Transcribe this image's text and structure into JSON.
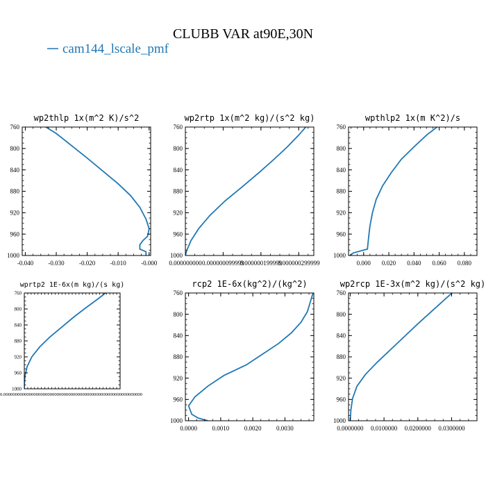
{
  "figure": {
    "title": "CLUBB VAR at90E,30N",
    "legend": "cam144_lscale_pmf",
    "line_color": "#1f77b4"
  },
  "chart_data": [
    {
      "type": "line",
      "title": "wp2thlp  1x(m^2 K)/s^2",
      "xlim": [
        -0.041,
        0.0005
      ],
      "ylim": [
        760,
        1000
      ],
      "yticks": [
        760,
        800,
        840,
        880,
        920,
        960,
        1000
      ],
      "xticks": [
        {
          "v": -0.04,
          "label": "-0.040"
        },
        {
          "v": -0.03,
          "label": "-0.030"
        },
        {
          "v": -0.02,
          "label": "-0.020"
        },
        {
          "v": -0.01,
          "label": "-0.010"
        },
        {
          "v": 0.0,
          "label": "-0.000"
        }
      ],
      "series": [
        {
          "points": [
            [
              -0.035,
              754
            ],
            [
              -0.03,
              772
            ],
            [
              -0.025,
              795
            ],
            [
              -0.02,
              818
            ],
            [
              -0.015,
              842
            ],
            [
              -0.01,
              866
            ],
            [
              -0.006,
              888
            ],
            [
              -0.003,
              910
            ],
            [
              -0.001,
              932
            ],
            [
              0.0,
              950
            ],
            [
              -0.0005,
              964
            ],
            [
              -0.002,
              972
            ],
            [
              -0.003,
              980
            ],
            [
              -0.003,
              988
            ],
            [
              -0.001,
              993
            ],
            [
              -0.001,
              1000
            ]
          ]
        }
      ]
    },
    {
      "type": "line",
      "title": "wp2rtp  1x(m^2 kg)/(s^2 kg)",
      "xlim": [
        0.0,
        3.4e-07
      ],
      "ylim": [
        760,
        1000
      ],
      "yticks": [
        760,
        800,
        840,
        880,
        920,
        960,
        1000
      ],
      "xticks": [
        {
          "v": 0.0,
          "label": "0.000000000"
        },
        {
          "v": 1e-07,
          "label": "0.000000099999"
        },
        {
          "v": 2e-07,
          "label": "0.000000199999"
        },
        {
          "v": 3e-07,
          "label": "0.000000299999"
        }
      ],
      "series": [
        {
          "points": [
            [
              3.25e-07,
              755
            ],
            [
              3e-07,
              775
            ],
            [
              2.7e-07,
              797
            ],
            [
              2.35e-07,
              820
            ],
            [
              1.95e-07,
              845
            ],
            [
              1.5e-07,
              872
            ],
            [
              1.05e-07,
              898
            ],
            [
              6.5e-08,
              925
            ],
            [
              3.5e-08,
              950
            ],
            [
              1.5e-08,
              972
            ],
            [
              4e-09,
              990
            ],
            [
              0.0,
              1000
            ]
          ]
        }
      ]
    },
    {
      "type": "line",
      "title": "wpthlp2  1x(m K^2)/s",
      "xlim": [
        -0.012,
        0.09
      ],
      "ylim": [
        760,
        1000
      ],
      "yticks": [
        760,
        800,
        840,
        880,
        920,
        960,
        1000
      ],
      "xticks": [
        {
          "v": 0.0,
          "label": "0.000"
        },
        {
          "v": 0.02,
          "label": "0.020"
        },
        {
          "v": 0.04,
          "label": "0.040"
        },
        {
          "v": 0.06,
          "label": "0.060"
        },
        {
          "v": 0.08,
          "label": "0.080"
        }
      ],
      "series": [
        {
          "points": [
            [
              0.061,
              755
            ],
            [
              0.05,
              775
            ],
            [
              0.04,
              797
            ],
            [
              0.03,
              820
            ],
            [
              0.022,
              845
            ],
            [
              0.015,
              870
            ],
            [
              0.01,
              895
            ],
            [
              0.007,
              920
            ],
            [
              0.005,
              945
            ],
            [
              0.004,
              965
            ],
            [
              0.003,
              988
            ],
            [
              -0.008,
              995
            ],
            [
              -0.011,
              1000
            ]
          ]
        }
      ]
    },
    {
      "type": "line",
      "title": "wprtp2  1E-6x(m kg)/(s kg)",
      "xlim": [
        0.0,
        2.8e-10
      ],
      "ylim": [
        760,
        1000
      ],
      "yticks": [
        760,
        800,
        840,
        880,
        920,
        960,
        1000
      ],
      "xticks": [],
      "xtick_text": "0.000000000000000000000000000000000000000000000000000000000000",
      "series": [
        {
          "points": [
            [
              2.45e-10,
              755
            ],
            [
              2.15e-10,
              775
            ],
            [
              1.8e-10,
              797
            ],
            [
              1.45e-10,
              820
            ],
            [
              1.1e-10,
              845
            ],
            [
              7.5e-11,
              870
            ],
            [
              4.5e-11,
              895
            ],
            [
              2.2e-11,
              920
            ],
            [
              8e-12,
              945
            ],
            [
              2e-12,
              968
            ],
            [
              0.0,
              990
            ],
            [
              0.0,
              1000
            ]
          ]
        }
      ]
    },
    {
      "type": "line",
      "title": "rcp2  1E-6x(kg^2)/(kg^2)",
      "xlim": [
        -0.0001,
        0.0039
      ],
      "ylim": [
        760,
        1000
      ],
      "yticks": [
        760,
        800,
        840,
        880,
        920,
        960,
        1000
      ],
      "xticks": [
        {
          "v": 0.0,
          "label": "0.0000"
        },
        {
          "v": 0.001,
          "label": "0.0010"
        },
        {
          "v": 0.002,
          "label": "0.0020"
        },
        {
          "v": 0.003,
          "label": "0.0030"
        }
      ],
      "series": [
        {
          "points": [
            [
              0.0039,
              755
            ],
            [
              0.0038,
              775
            ],
            [
              0.0037,
              795
            ],
            [
              0.0035,
              815
            ],
            [
              0.0032,
              835
            ],
            [
              0.0028,
              855
            ],
            [
              0.0023,
              875
            ],
            [
              0.0018,
              895
            ],
            [
              0.0011,
              915
            ],
            [
              0.0006,
              935
            ],
            [
              0.0002,
              955
            ],
            [
              0.0,
              972
            ],
            [
              0.0001,
              988
            ],
            [
              0.0003,
              995
            ],
            [
              0.0006,
              1000
            ]
          ]
        }
      ]
    },
    {
      "type": "line",
      "title": "wp2rcp  1E-3x(m^2 kg)/(s^2 kg)",
      "xlim": [
        -0.0005,
        0.0375
      ],
      "ylim": [
        760,
        1000
      ],
      "yticks": [
        760,
        800,
        840,
        880,
        920,
        960,
        1000
      ],
      "xticks": [
        {
          "v": 0.0,
          "label": "0.0000000"
        },
        {
          "v": 0.01,
          "label": "0.0100000"
        },
        {
          "v": 0.02,
          "label": "0.0200000"
        },
        {
          "v": 0.03,
          "label": "0.0300000"
        }
      ],
      "series": [
        {
          "points": [
            [
              0.031,
              755
            ],
            [
              0.028,
              772
            ],
            [
              0.024,
              795
            ],
            [
              0.02,
              818
            ],
            [
              0.016,
              842
            ],
            [
              0.012,
              866
            ],
            [
              0.008,
              890
            ],
            [
              0.0045,
              913
            ],
            [
              0.002,
              935
            ],
            [
              0.0007,
              958
            ],
            [
              0.0002,
              980
            ],
            [
              0.0,
              1000
            ]
          ]
        }
      ]
    }
  ]
}
